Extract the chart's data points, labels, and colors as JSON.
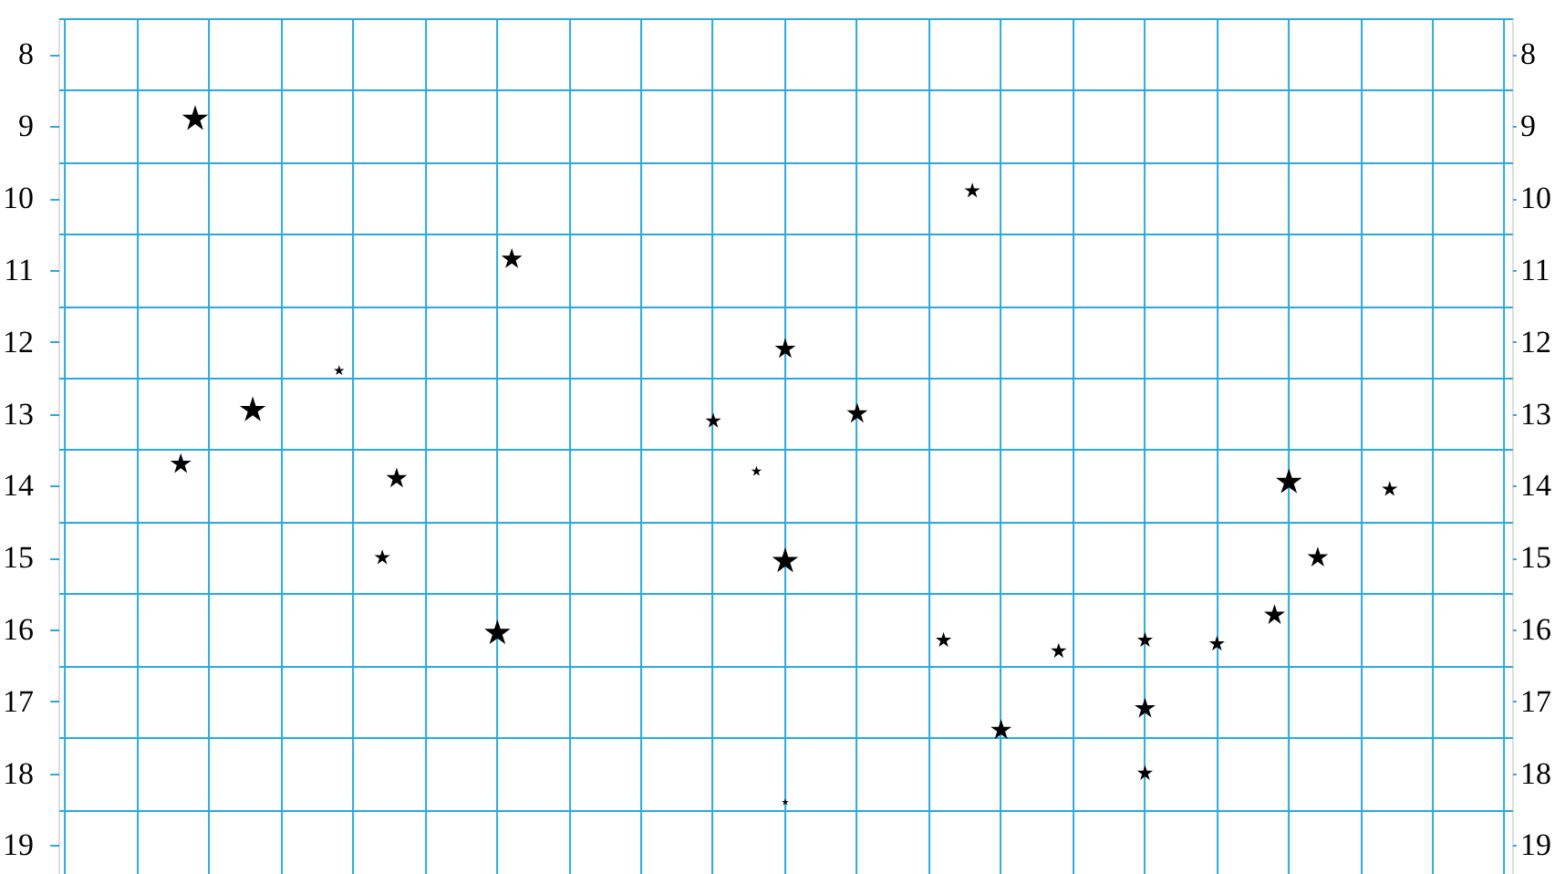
{
  "chart_data": {
    "type": "bubble",
    "marker": "star",
    "grid": true,
    "tick_labels": "y",
    "legend": false,
    "categories": [
      null,
      null,
      null,
      null,
      null,
      null,
      null,
      null,
      null,
      null,
      null,
      null,
      null,
      null,
      null,
      null,
      null,
      null,
      null,
      null,
      null,
      null,
      null,
      null,
      null,
      null,
      null,
      null,
      null,
      null,
      null,
      null,
      null,
      null,
      null,
      null,
      null,
      null,
      null,
      null,
      null,
      null,
      null,
      null,
      null,
      null,
      null,
      null,
      null,
      null,
      null,
      null,
      null,
      null,
      null,
      null,
      null,
      null,
      null,
      null,
      null,
      null,
      null,
      null,
      null,
      null,
      null,
      null,
      null,
      null,
      null,
      null,
      null,
      null,
      null,
      null,
      null,
      null,
      null,
      null,
      null,
      null,
      null,
      null,
      null,
      null,
      null,
      null,
      null,
      null,
      null,
      null,
      null,
      null,
      null,
      null,
      null,
      null,
      null,
      null,
      null
    ],
    "ylim": [
      19.4,
      7.5
    ],
    "yticks": [
      {
        "value": 7.5,
        "label": null
      },
      8,
      {
        "value": 8.5,
        "label": null
      },
      9,
      {
        "value": 9.5,
        "label": null
      },
      10,
      {
        "value": 10.5,
        "label": null
      },
      11,
      {
        "value": 11.5,
        "label": null
      },
      12,
      {
        "value": 12.5,
        "label": null
      },
      13,
      {
        "value": 13.5,
        "label": null
      },
      14,
      {
        "value": 14.5,
        "label": null
      },
      15,
      {
        "value": 15.5,
        "label": null
      },
      16,
      {
        "value": 16.5,
        "label": null
      },
      17,
      {
        "value": 17.5,
        "label": null
      },
      18,
      {
        "value": 18.5,
        "label": null
      },
      19
    ],
    "y2lim": [
      19.4,
      7.5
    ],
    "y2ticks": [
      8,
      9,
      10,
      11,
      12,
      13,
      14,
      15,
      16,
      17,
      18,
      19
    ],
    "series": [
      {
        "color": "#000000",
        "values": [
          null,
          null,
          null,
          null,
          null,
          null,
          null,
          null,
          13.7,
          8.9,
          null,
          null,
          null,
          12.95,
          null,
          null,
          null,
          null,
          null,
          12.4,
          null,
          null,
          15.0,
          13.9,
          null,
          null,
          null,
          null,
          null,
          null,
          16.05,
          10.85,
          null,
          null,
          null,
          null,
          null,
          null,
          null,
          null,
          null,
          null,
          null,
          null,
          null,
          13.1,
          null,
          null,
          13.8,
          null,
          12.1,
          null,
          null,
          null,
          null,
          13.0,
          null,
          null,
          null,
          null,
          null,
          16.15,
          null,
          9.9,
          null,
          17.4,
          null,
          null,
          null,
          16.3,
          null,
          null,
          null,
          null,
          null,
          16.15,
          null,
          null,
          null,
          null,
          16.2,
          null,
          null,
          null,
          15.8,
          13.95,
          null,
          15.0,
          null,
          null,
          null,
          null,
          14.05,
          null,
          null,
          null,
          null,
          null,
          null,
          null,
          null
        ],
        "sizes": [
          null,
          null,
          null,
          null,
          null,
          null,
          null,
          null,
          0.64,
          1,
          null,
          null,
          null,
          1,
          null,
          null,
          null,
          null,
          null,
          0.16,
          null,
          null,
          0.36,
          0.64,
          null,
          null,
          null,
          null,
          null,
          null,
          1,
          0.64,
          null,
          null,
          null,
          null,
          null,
          null,
          null,
          null,
          null,
          null,
          null,
          null,
          null,
          0.36,
          null,
          null,
          0.16,
          null,
          0.64,
          null,
          null,
          null,
          null,
          0.64,
          null,
          null,
          null,
          null,
          null,
          0.36,
          null,
          0.36,
          null,
          0.64,
          null,
          null,
          null,
          0.36,
          null,
          null,
          null,
          null,
          null,
          0.36,
          null,
          null,
          null,
          null,
          0.36,
          null,
          null,
          null,
          0.64,
          1,
          null,
          0.64,
          null,
          null,
          null,
          null,
          0.36,
          null,
          null,
          null,
          null,
          null,
          null,
          null,
          null
        ]
      },
      {
        "color": "#000000",
        "values": [
          null,
          null,
          null,
          null,
          null,
          null,
          null,
          null,
          null,
          null,
          null,
          null,
          null,
          null,
          null,
          null,
          null,
          null,
          null,
          null,
          null,
          null,
          null,
          null,
          null,
          null,
          null,
          null,
          null,
          null,
          null,
          null,
          null,
          null,
          null,
          null,
          null,
          null,
          null,
          null,
          null,
          null,
          null,
          null,
          null,
          null,
          null,
          null,
          null,
          null,
          15.05,
          null,
          null,
          null,
          null,
          null,
          null,
          null,
          null,
          null,
          null,
          null,
          null,
          null,
          null,
          null,
          null,
          null,
          null,
          null,
          null,
          null,
          null,
          null,
          null,
          17.1,
          null,
          null,
          null,
          null,
          null,
          null,
          null,
          null,
          null,
          null,
          null,
          null,
          null,
          null,
          null,
          null,
          null,
          null,
          null,
          null,
          null,
          null,
          null,
          null,
          null
        ],
        "sizes": [
          null,
          null,
          null,
          null,
          null,
          null,
          null,
          null,
          null,
          null,
          null,
          null,
          null,
          null,
          null,
          null,
          null,
          null,
          null,
          null,
          null,
          null,
          null,
          null,
          null,
          null,
          null,
          null,
          null,
          null,
          null,
          null,
          null,
          null,
          null,
          null,
          null,
          null,
          null,
          null,
          null,
          null,
          null,
          null,
          null,
          null,
          null,
          null,
          null,
          null,
          1,
          null,
          null,
          null,
          null,
          null,
          null,
          null,
          null,
          null,
          null,
          null,
          null,
          null,
          null,
          null,
          null,
          null,
          null,
          null,
          null,
          null,
          null,
          null,
          null,
          0.64,
          null,
          null,
          null,
          null,
          null,
          null,
          null,
          null,
          null,
          null,
          null,
          null,
          null,
          null,
          null,
          null,
          null,
          null,
          null,
          null,
          null,
          null,
          null,
          null,
          null
        ]
      },
      {
        "color": "#000000",
        "values": [
          null,
          null,
          null,
          null,
          null,
          null,
          null,
          null,
          null,
          null,
          null,
          null,
          null,
          null,
          null,
          null,
          null,
          null,
          null,
          null,
          null,
          null,
          null,
          null,
          null,
          null,
          null,
          null,
          null,
          null,
          null,
          null,
          null,
          null,
          null,
          null,
          null,
          null,
          null,
          null,
          null,
          null,
          null,
          null,
          null,
          null,
          null,
          null,
          null,
          null,
          18.4,
          null,
          null,
          null,
          null,
          null,
          null,
          null,
          null,
          null,
          null,
          null,
          null,
          null,
          null,
          null,
          null,
          null,
          null,
          null,
          null,
          null,
          null,
          null,
          null,
          18.0,
          null,
          null,
          null,
          null,
          null,
          null,
          null,
          null,
          null,
          null,
          null,
          null,
          null,
          null,
          null,
          null,
          null,
          null,
          null,
          null,
          null,
          null,
          null,
          null,
          null
        ],
        "sizes": [
          null,
          null,
          null,
          null,
          null,
          null,
          null,
          null,
          null,
          null,
          null,
          null,
          null,
          null,
          null,
          null,
          null,
          null,
          null,
          null,
          null,
          null,
          null,
          null,
          null,
          null,
          null,
          null,
          null,
          null,
          null,
          null,
          null,
          null,
          null,
          null,
          null,
          null,
          null,
          null,
          null,
          null,
          null,
          null,
          null,
          null,
          null,
          null,
          null,
          null,
          0.07,
          null,
          null,
          null,
          null,
          null,
          null,
          null,
          null,
          null,
          null,
          null,
          null,
          null,
          null,
          null,
          null,
          null,
          null,
          null,
          null,
          null,
          null,
          null,
          null,
          0.36,
          null,
          null,
          null,
          null,
          null,
          null,
          null,
          null,
          null,
          null,
          null,
          null,
          null,
          null,
          null,
          null,
          null,
          null,
          null,
          null,
          null,
          null,
          null,
          null,
          null
        ]
      }
    ]
  }
}
